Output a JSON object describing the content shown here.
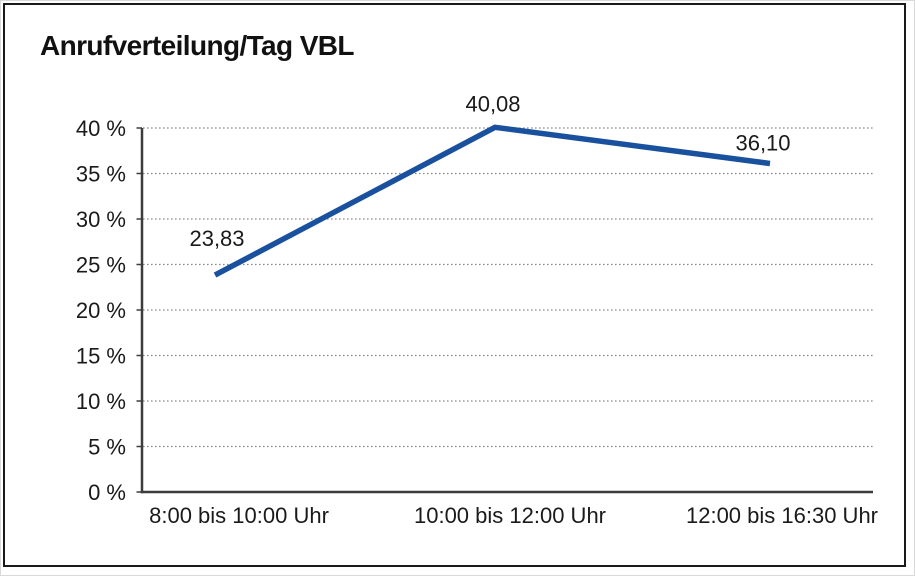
{
  "chart_data": {
    "type": "line",
    "title": "Anrufverteilung/Tag VBL",
    "categories": [
      "8:00 bis 10:00 Uhr",
      "10:00 bis 12:00 Uhr",
      "12:00 bis 16:30 Uhr"
    ],
    "values": [
      23.83,
      40.08,
      36.1
    ],
    "point_labels": [
      "23,83",
      "40,08",
      "36,10"
    ],
    "xlabel": "",
    "ylabel": "",
    "ylim": [
      0,
      40
    ],
    "ytick_step": 5,
    "ytick_labels": [
      "0 %",
      "5 %",
      "10 %",
      "15 %",
      "20 %",
      "25 %",
      "30 %",
      "35 %",
      "40 %"
    ],
    "grid": "horizontal-dotted",
    "legend": "none",
    "colors": {
      "line": "#1a519e",
      "axis": "#3c3c3c",
      "grid": "#8a8a8a",
      "text": "#1a1a1a",
      "frame_border": "#191919"
    }
  }
}
